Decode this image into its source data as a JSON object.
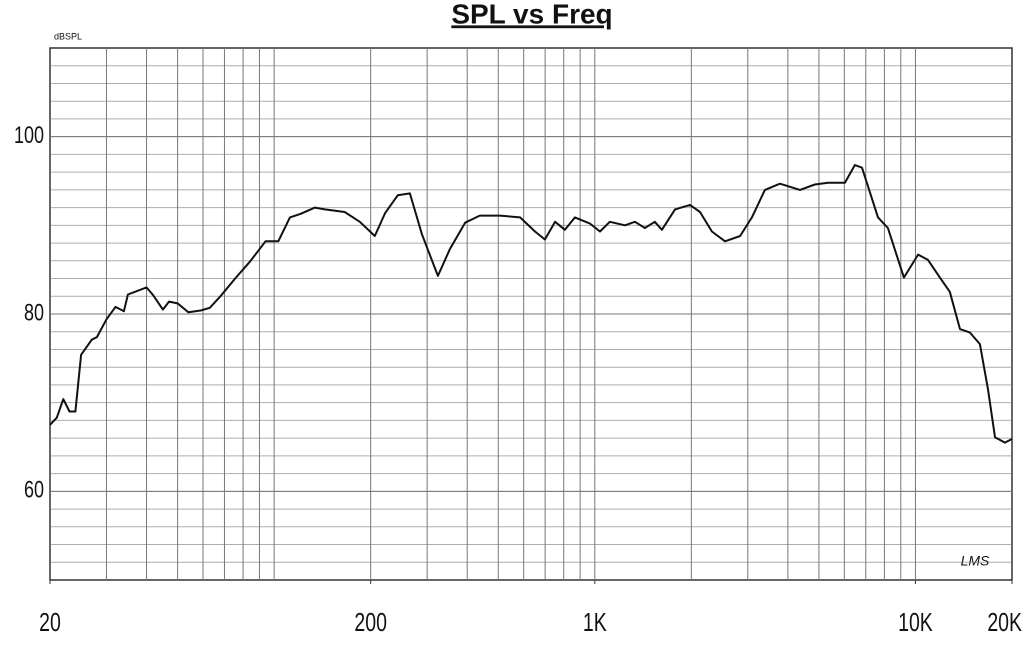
{
  "chart_data": {
    "type": "line",
    "title": "SPL vs Freq",
    "y_label": "dBSPL",
    "annotation": "LMS",
    "xscale": "log",
    "grid": true,
    "xlim": [
      20,
      20000
    ],
    "xticks": [
      20,
      200,
      {
        "value": 1000,
        "label": "1K"
      },
      {
        "value": 10000,
        "label": "10K"
      },
      {
        "value": 20000,
        "label": "20K"
      }
    ],
    "ylim": [
      50,
      110
    ],
    "yticks": [
      60,
      80,
      100
    ],
    "series": [
      {
        "color": "#111111",
        "x": [
          20,
          21,
          22,
          23,
          24,
          25,
          27,
          28,
          30,
          32,
          34,
          35,
          40,
          42,
          45,
          47,
          50,
          54,
          59,
          63,
          68,
          76,
          84,
          94,
          103,
          112,
          121,
          134,
          144,
          166,
          185,
          206,
          222,
          243,
          265,
          289,
          324,
          353,
          394,
          438,
          506,
          585,
          651,
          699,
          752,
          807,
          867,
          966,
          1038,
          1114,
          1242,
          1334,
          1433,
          1539,
          1619,
          1779,
          1981,
          2128,
          2319,
          2547,
          2838,
          3090,
          3392,
          3778,
          4365,
          4855,
          5335,
          6026,
          6474,
          6810,
          7640,
          8204,
          9205,
          10190,
          10940,
          11920,
          12800,
          13770,
          14790,
          15880,
          16830,
          17700,
          19010,
          20000
        ],
        "values": [
          67.5,
          68.3,
          70.4,
          69,
          69,
          75.4,
          77.1,
          77.4,
          79.4,
          80.8,
          80.3,
          82.2,
          83,
          82.1,
          80.5,
          81.4,
          81.2,
          80.2,
          80.4,
          80.7,
          82,
          84.1,
          85.9,
          88.2,
          88.2,
          90.9,
          91.3,
          92,
          91.8,
          91.5,
          90.4,
          88.8,
          91.4,
          93.4,
          93.6,
          89,
          84.3,
          87.3,
          90.3,
          91.1,
          91.1,
          90.9,
          89.3,
          88.4,
          90.4,
          89.5,
          90.9,
          90.2,
          89.3,
          90.4,
          90,
          90.4,
          89.7,
          90.4,
          89.5,
          91.8,
          92.3,
          91.5,
          89.3,
          88.2,
          88.8,
          90.9,
          94,
          94.7,
          94,
          94.6,
          94.8,
          94.8,
          96.8,
          96.5,
          90.9,
          89.7,
          84.1,
          86.7,
          86.1,
          84.1,
          82.5,
          78.3,
          77.9,
          76.6,
          71.5,
          66.1,
          65.5,
          65.9
        ]
      }
    ]
  }
}
